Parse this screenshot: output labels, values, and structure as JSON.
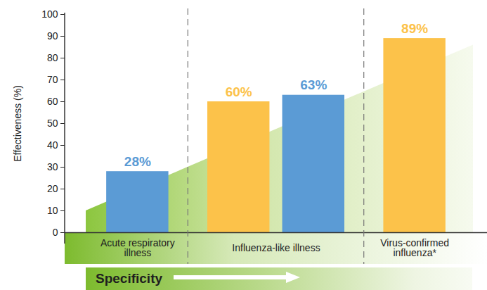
{
  "chart_data": {
    "type": "bar",
    "y_label": "Effectiveness (%)",
    "categories": [
      "Acute respiratory illness",
      "Influenza-like illness",
      null,
      "Virus-confirmed influenza*"
    ],
    "values": [
      28,
      60,
      63,
      89
    ],
    "value_labels": [
      "28%",
      "60%",
      "63%",
      "89%"
    ],
    "colors": [
      "#5b9bd5",
      "#fcc24a",
      "#5b9bd5",
      "#fcc24a"
    ],
    "ylim": [
      0,
      100
    ],
    "yticks": [
      0,
      10,
      20,
      30,
      40,
      50,
      60,
      70,
      80,
      90,
      100
    ],
    "grid": false,
    "data_labels": true,
    "annotation": "Specificity"
  }
}
